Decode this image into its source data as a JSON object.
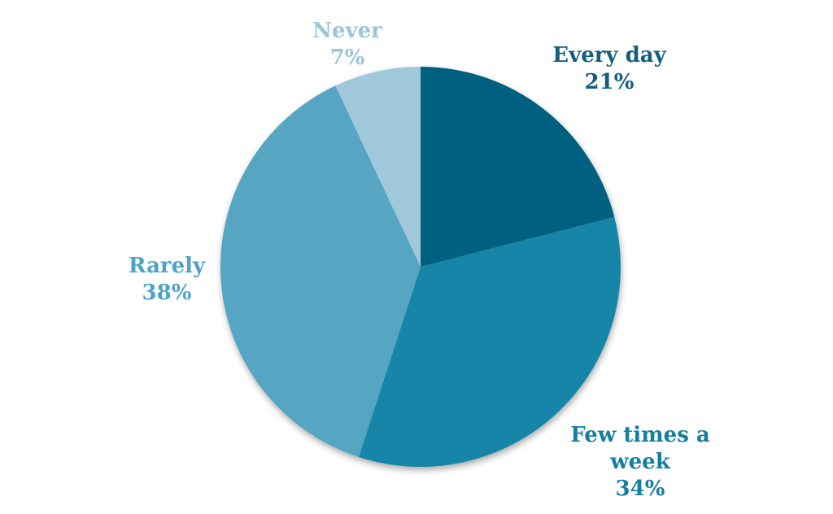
{
  "chart_data": {
    "type": "pie",
    "title": "",
    "legend_position": "none",
    "labels_position": "outside",
    "background": "#ffffff",
    "categories": [
      "Every day",
      "Few times a week",
      "Rarely",
      "Never"
    ],
    "values": [
      21,
      34,
      38,
      7
    ],
    "start_angle_deg": 0,
    "direction": "clockwise",
    "slices": [
      {
        "label": "Every day",
        "value": 21,
        "pct_label": "21%",
        "color": "#00617f",
        "label_color": "#135e7e"
      },
      {
        "label": "Few times a week",
        "value": 34,
        "pct_label": "34%",
        "color": "#1285a7",
        "label_color": "#157ea1"
      },
      {
        "label": "Rarely",
        "value": 38,
        "pct_label": "38%",
        "color": "#56a6c3",
        "label_color": "#4fa3c8"
      },
      {
        "label": "Never",
        "value": 7,
        "pct_label": "7%",
        "color": "#a0c8db",
        "label_color": "#9cc5da"
      }
    ]
  }
}
